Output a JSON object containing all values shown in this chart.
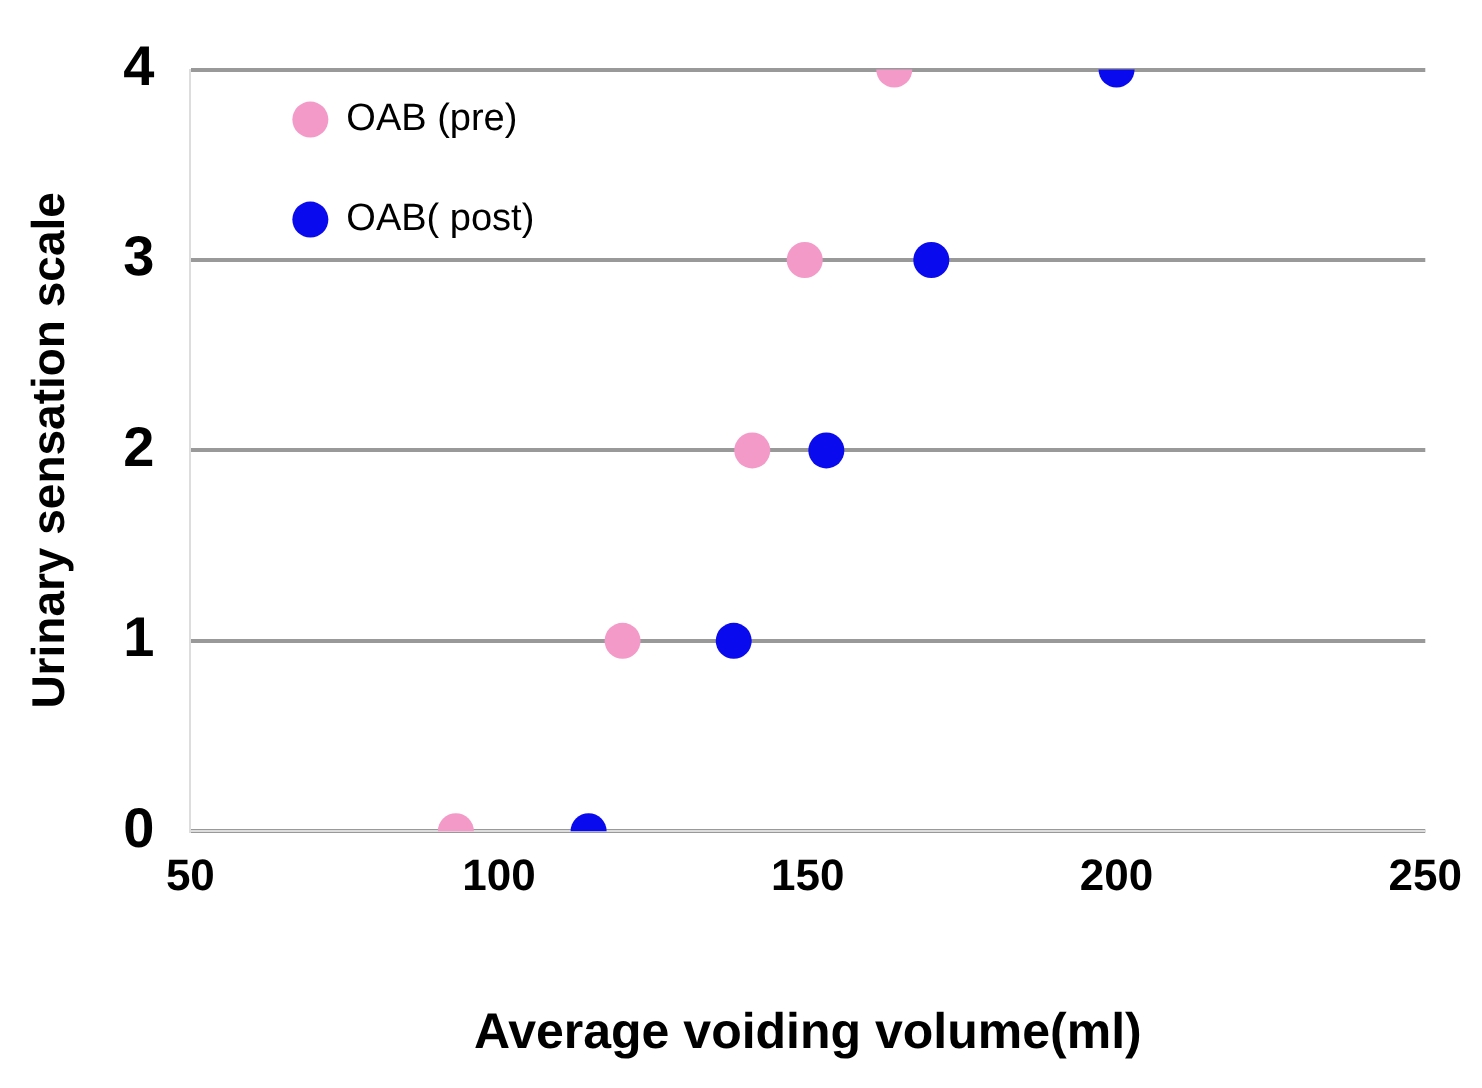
{
  "chart_data": {
    "type": "scatter",
    "xlabel": "Average voiding volume(ml)",
    "ylabel": "Urinary sensation scale",
    "series": [
      {
        "name": "OAB (pre)",
        "color": "#f49ac8",
        "x": [
          93,
          120,
          141,
          149.5,
          164
        ],
        "values": [
          0,
          1,
          2,
          3,
          4
        ]
      },
      {
        "name": "OAB( post)",
        "color": "#0a0aee",
        "x": [
          114.5,
          138,
          153,
          170,
          200
        ],
        "values": [
          0,
          1,
          2,
          3,
          4
        ]
      }
    ],
    "xlim": [
      50,
      250
    ],
    "xticks": [
      50,
      100,
      150,
      200,
      250
    ],
    "ylim": [
      0,
      4
    ],
    "yticks": [
      0,
      1,
      2,
      3,
      4
    ],
    "grid": "y",
    "legend": "top left",
    "marker": "circle"
  }
}
